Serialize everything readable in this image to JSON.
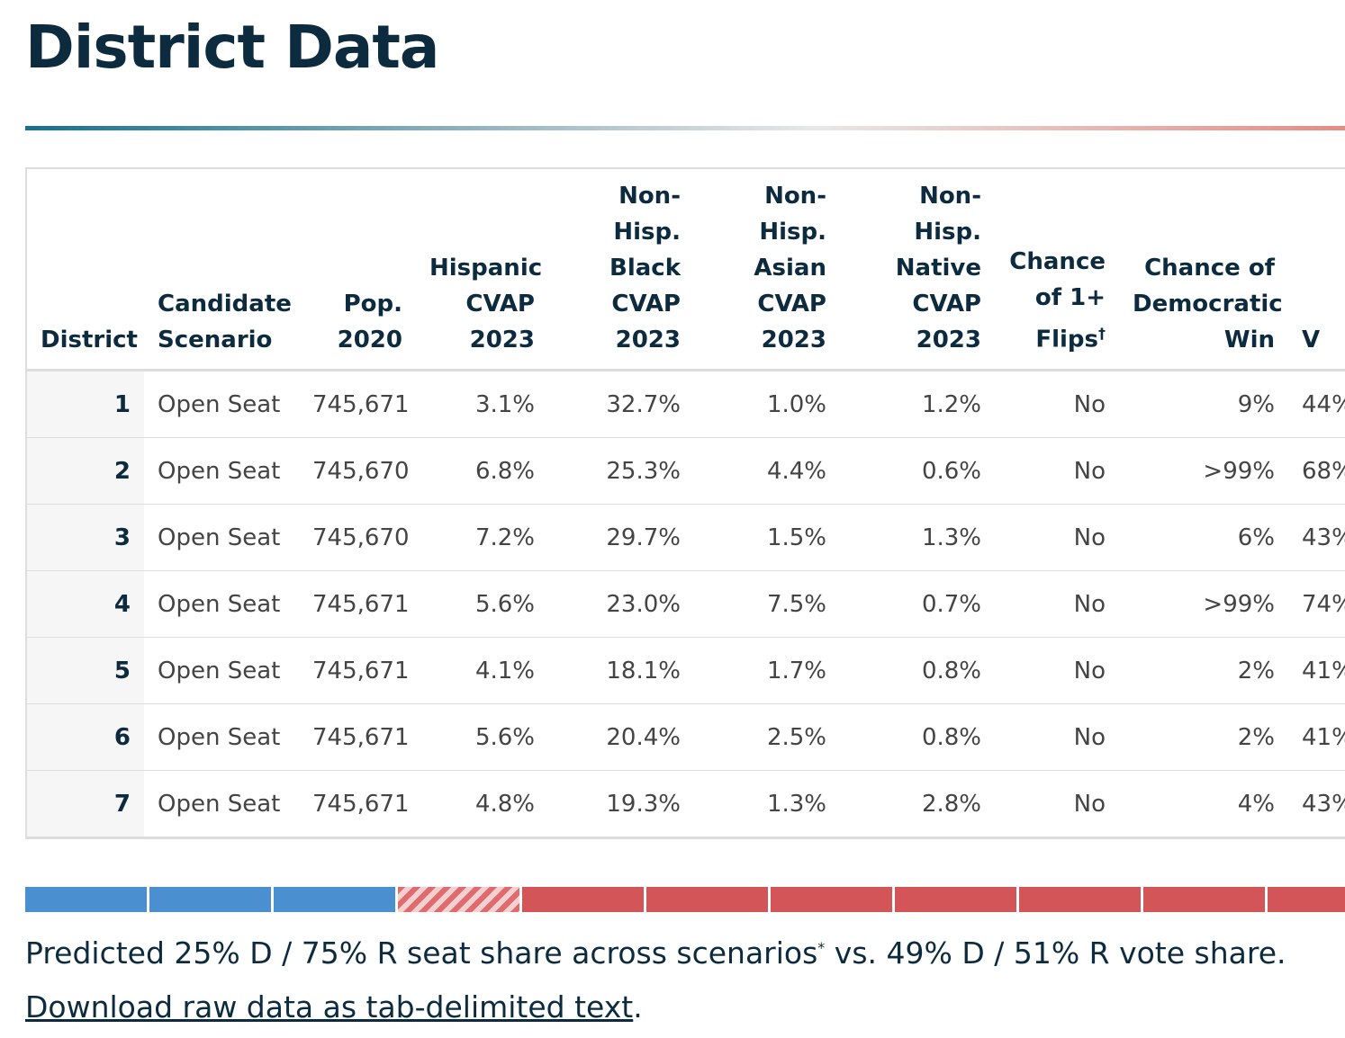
{
  "header": {
    "title": "District Data"
  },
  "table": {
    "columns": [
      {
        "lines": [
          "District"
        ],
        "align": "right"
      },
      {
        "lines": [
          "Candidate",
          "Scenario"
        ],
        "align": "left"
      },
      {
        "lines": [
          "Pop.",
          "2020"
        ],
        "align": "right"
      },
      {
        "lines": [
          "Hispanic",
          "CVAP",
          "2023"
        ],
        "align": "right"
      },
      {
        "lines": [
          "Non-",
          "Hisp.",
          "Black",
          "CVAP",
          "2023"
        ],
        "align": "right"
      },
      {
        "lines": [
          "Non-",
          "Hisp.",
          "Asian",
          "CVAP",
          "2023"
        ],
        "align": "right"
      },
      {
        "lines": [
          "Non-Hisp.",
          "Native",
          "CVAP",
          "2023"
        ],
        "align": "right"
      },
      {
        "lines": [
          "Chance",
          "of 1+",
          "Flips"
        ],
        "mark": "†",
        "align": "right"
      },
      {
        "lines": [
          "Chance of",
          "Democratic",
          "Win"
        ],
        "align": "right"
      },
      {
        "lines": [
          "V"
        ],
        "align": "left"
      }
    ],
    "rows": [
      [
        "1",
        "Open Seat",
        "745,671",
        "3.1%",
        "32.7%",
        "1.0%",
        "1.2%",
        "No",
        "9%",
        "44%"
      ],
      [
        "2",
        "Open Seat",
        "745,670",
        "6.8%",
        "25.3%",
        "4.4%",
        "0.6%",
        "No",
        ">99%",
        "68%"
      ],
      [
        "3",
        "Open Seat",
        "745,670",
        "7.2%",
        "29.7%",
        "1.5%",
        "1.3%",
        "No",
        "6%",
        "43%"
      ],
      [
        "4",
        "Open Seat",
        "745,671",
        "5.6%",
        "23.0%",
        "7.5%",
        "0.7%",
        "No",
        ">99%",
        "74%"
      ],
      [
        "5",
        "Open Seat",
        "745,671",
        "4.1%",
        "18.1%",
        "1.7%",
        "0.8%",
        "No",
        "2%",
        "41%"
      ],
      [
        "6",
        "Open Seat",
        "745,671",
        "5.6%",
        "20.4%",
        "2.5%",
        "0.8%",
        "No",
        "2%",
        "41%"
      ],
      [
        "7",
        "Open Seat",
        "745,671",
        "4.8%",
        "19.3%",
        "1.3%",
        "2.8%",
        "No",
        "4%",
        "43%"
      ]
    ]
  },
  "footer": {
    "summary": "Predicted 25% D / 75% R seat share across scenarios",
    "summary_mark": "*",
    "summary_rest": " vs. 49% D / 51% R vote share.",
    "link": "Download raw data as tab-delimited text",
    "link_end": "."
  }
}
